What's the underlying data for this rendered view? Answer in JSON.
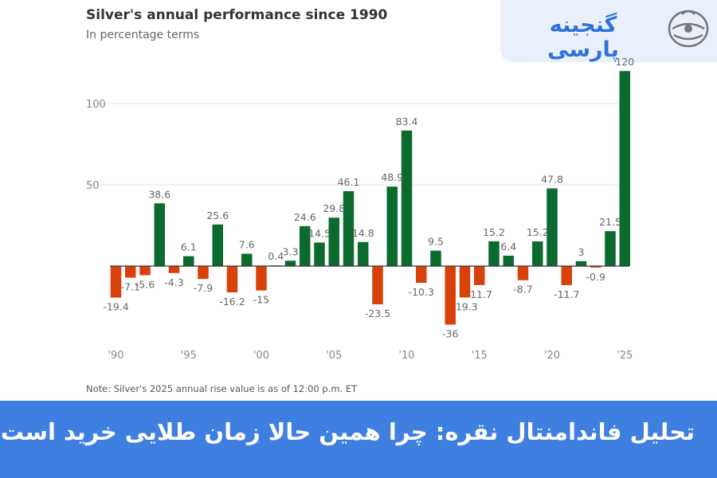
{
  "logo": {
    "text": "گنجینه پارسی"
  },
  "banner": {
    "title": "تحلیل فاندامنتال نقره: چرا همین حالا زمان طلایی خرید است؟"
  },
  "chart_data": {
    "type": "bar",
    "title": "Silver's annual performance since 1990",
    "subtitle": "In percentage terms",
    "note": "Note: Silver's 2025 annual rise value is as of 12:00 p.m. ET",
    "xlabel": "",
    "ylabel": "",
    "ylim": [
      -50,
      120
    ],
    "y_ticks": [
      0,
      50,
      100
    ],
    "y_tick_labels": [
      "",
      "50",
      "100"
    ],
    "x_tick_labels": [
      "'90",
      "'95",
      "'00",
      "'05",
      "'10",
      "'15",
      "'20",
      "'25"
    ],
    "x_tick_years": [
      1990,
      1995,
      2000,
      2005,
      2010,
      2015,
      2020,
      2025
    ],
    "grid": true,
    "positive_color": "#0b6b2e",
    "negative_color": "#d9410b",
    "categories": [
      1990,
      1991,
      1992,
      1993,
      1994,
      1995,
      1996,
      1997,
      1998,
      1999,
      2000,
      2001,
      2002,
      2003,
      2004,
      2005,
      2006,
      2007,
      2008,
      2009,
      2010,
      2011,
      2012,
      2013,
      2014,
      2015,
      2016,
      2017,
      2018,
      2019,
      2020,
      2021,
      2022,
      2023,
      2024,
      2025
    ],
    "values": [
      -19.4,
      -7.1,
      -5.6,
      38.6,
      -4.3,
      6.1,
      -7.9,
      25.6,
      -16.2,
      7.6,
      -15,
      0.4,
      3.3,
      24.6,
      14.5,
      29.8,
      46.1,
      14.8,
      -23.5,
      48.9,
      83.4,
      -10.3,
      9.5,
      -36,
      -19.3,
      -11.7,
      15.2,
      6.4,
      -8.7,
      15.2,
      47.8,
      -11.7,
      3,
      -0.9,
      21.5,
      120
    ],
    "labels": [
      "-19.4",
      "-7.1",
      "-5.6",
      "38.6",
      "-4.3",
      "6.1",
      "-7.9",
      "25.6",
      "-16.2",
      "7.6",
      "-15",
      "0.4",
      "3.3",
      "24.6",
      "14.5",
      "29.8",
      "46.1",
      "14.8",
      "-23.5",
      "48.9",
      "83.4",
      "-10.3",
      "9.5",
      "-36",
      "-19.3",
      "-11.7",
      "15.2",
      "6.4",
      "-8.7",
      "15.2",
      "47.8",
      "-11.7",
      "3",
      "-0.9",
      "21.5",
      "120"
    ]
  }
}
